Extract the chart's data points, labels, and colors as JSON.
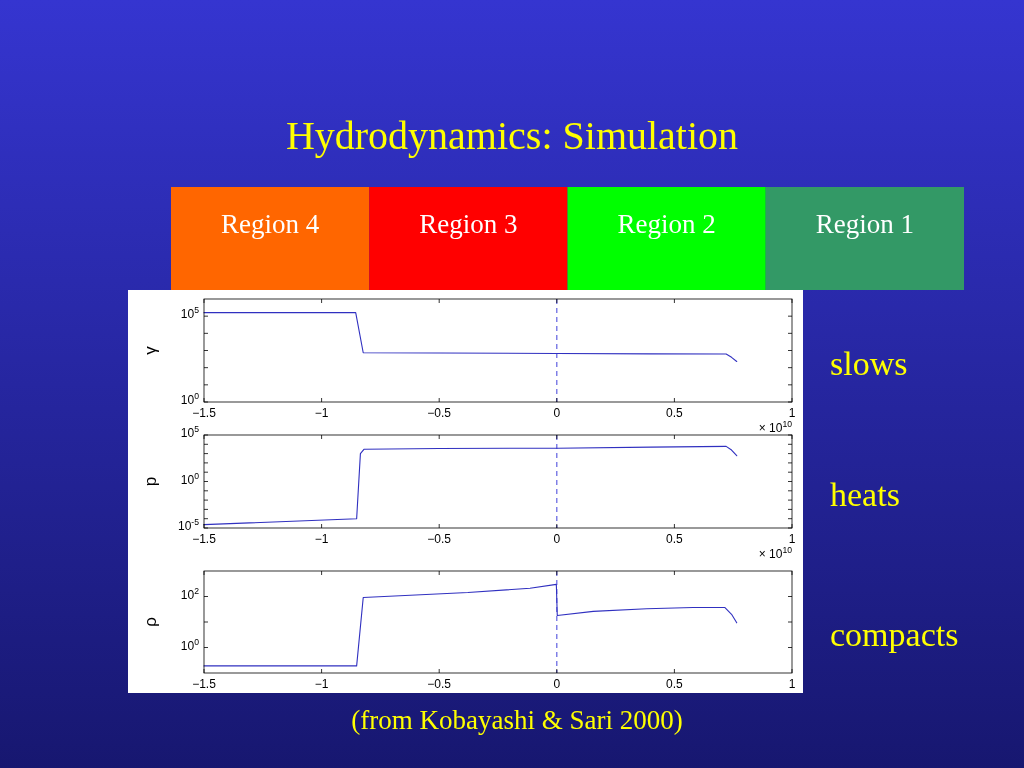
{
  "chart_data": [
    {
      "type": "other",
      "title": "Hydrodynamics: Simulation",
      "categories": [
        "Region 4",
        "Region 3",
        "Region 2",
        "Region 1"
      ],
      "colors": [
        "#ff6600",
        "#ff0000",
        "#00ff00",
        "#339966"
      ]
    },
    {
      "type": "line",
      "ylabel": "γ",
      "xlabel": "× 10$^{10}$",
      "log": "y",
      "color": "#3030c0",
      "x": [
        -1.5,
        -0.855,
        -0.823,
        -0.5,
        0,
        0.4,
        0.72,
        0.743,
        0.765
      ],
      "values": [
        160000,
        160000,
        740,
        710,
        670,
        640,
        620,
        400,
        230
      ],
      "xlim": [
        -1.5,
        1
      ],
      "xticks": [
        -1.5,
        -1,
        -0.5,
        0,
        0.5,
        1
      ],
      "ylim": [
        1,
        1000000
      ],
      "yticks": [
        {
          "value": 1,
          "label": "10$^{0}$"
        },
        {
          "value": 10,
          "label": null
        },
        {
          "value": 100,
          "label": null
        },
        {
          "value": 1000,
          "label": null
        },
        {
          "value": 10000,
          "label": null
        },
        {
          "value": 100000,
          "label": "10$^{5}$"
        }
      ],
      "ref_lines": [
        {
          "axis": "x",
          "value": 0,
          "color": "#6060e0",
          "line_style": "dashed"
        }
      ],
      "annotations": [
        "slows"
      ]
    },
    {
      "type": "line",
      "ylabel": "p",
      "xlabel": "× 10$^{10}$",
      "log": "y",
      "color": "#3030c0",
      "x": [
        -1.5,
        -0.851,
        -0.835,
        -0.82,
        -0.5,
        0,
        0.4,
        0.72,
        0.743,
        0.765
      ],
      "values": [
        2.3e-05,
        0.0001,
        1000,
        2900,
        3600,
        3800,
        5000,
        6000,
        2400,
        590
      ],
      "xlim": [
        -1.5,
        1
      ],
      "xticks": [
        -1.5,
        -1,
        -0.5,
        0,
        0.5,
        1
      ],
      "ylim": [
        1e-05,
        100000
      ],
      "yticks": [
        {
          "value": 1e-05,
          "label": "10$^{-5}$"
        },
        {
          "value": 0.0001,
          "label": null
        },
        {
          "value": 0.001,
          "label": null
        },
        {
          "value": 0.01,
          "label": null
        },
        {
          "value": 0.1,
          "label": null
        },
        {
          "value": 1,
          "label": "10$^{0}$"
        },
        {
          "value": 10,
          "label": null
        },
        {
          "value": 100,
          "label": null
        },
        {
          "value": 1000,
          "label": null
        },
        {
          "value": 10000,
          "label": null
        },
        {
          "value": 100000,
          "label": "10$^{5}$"
        }
      ],
      "ref_lines": [
        {
          "axis": "x",
          "value": 0,
          "color": "#6060e0",
          "line_style": "dashed"
        }
      ],
      "annotations": [
        "heats"
      ]
    },
    {
      "type": "line",
      "ylabel": "ρ",
      "log": "y",
      "color": "#3030c0",
      "x": [
        -1.5,
        -0.851,
        -0.823,
        -0.378,
        -0.114,
        -0.002,
        0.002,
        0.155,
        0.382,
        0.58,
        0.715,
        0.743,
        0.765
      ],
      "values": [
        0.19,
        0.19,
        91,
        143,
        212,
        300,
        18,
        26,
        33,
        37,
        37,
        20,
        9.3
      ],
      "xlim": [
        -1.5,
        1
      ],
      "xticks": [
        -1.5,
        -1,
        -0.5,
        0,
        0.5,
        1
      ],
      "ylim": [
        0.1,
        1000
      ],
      "yticks": [
        {
          "value": 1,
          "label": "10$^{0}$"
        },
        {
          "value": 10,
          "label": null
        },
        {
          "value": 100,
          "label": "10$^{2}$"
        }
      ],
      "ref_lines": [
        {
          "axis": "x",
          "value": 0,
          "color": "#6060e0",
          "line_style": "dashed"
        }
      ],
      "annotations": [
        "compacts",
        "(from Kobayashi & Sari 2000)"
      ]
    }
  ]
}
